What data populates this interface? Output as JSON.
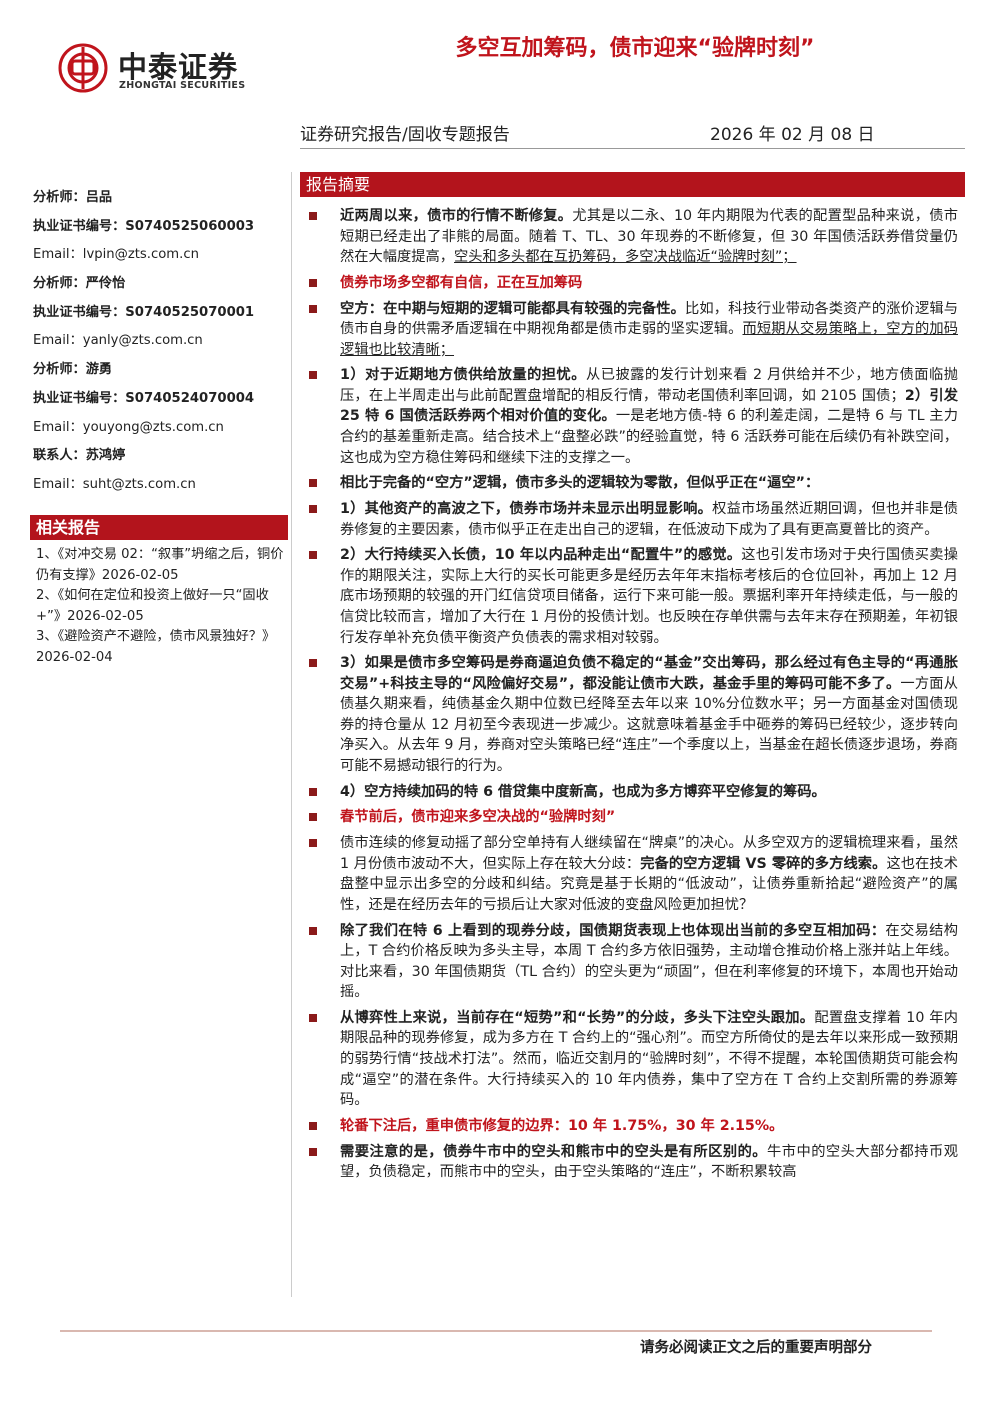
{
  "header": {
    "logo_cn": "中泰证券",
    "logo_en": "ZHONGTAI SECURITIES",
    "title": "多空互加筹码，债市迎来“验牌时刻”",
    "report_type": "证券研究报告/固收专题报告",
    "date": "2026 年 02 月 08 日"
  },
  "contacts": [
    {
      "text": "分析师：吕品",
      "style": "bold"
    },
    {
      "text": "执业证书编号：S0740525060003",
      "style": "bold"
    },
    {
      "text": "Email：lvpin@zts.com.cn",
      "style": "normal"
    },
    {
      "text": "分析师：严伶怡",
      "style": "bold"
    },
    {
      "text": "执业证书编号：S0740525070001",
      "style": "bold"
    },
    {
      "text": "Email：yanly@zts.com.cn",
      "style": "normal"
    },
    {
      "text": "分析师：游勇",
      "style": "bold"
    },
    {
      "text": "执业证书编号：S0740524070004",
      "style": "bold"
    },
    {
      "text": "Email：youyong@zts.com.cn",
      "style": "normal"
    },
    {
      "text": "联系人：苏鸿婷",
      "style": "bold"
    },
    {
      "text": "Email：suht@zts.com.cn",
      "style": "normal"
    }
  ],
  "related": {
    "title": "相关报告",
    "items": [
      "1、《对冲交易 02：“叙事”坍缩之后，铜价仍有支撑》2026-02-05",
      "2、《如何在定位和投资上做好一只“固收+”》2026-02-05",
      "3、《避险资产不避险，债市风景独好？》2026-02-04"
    ]
  },
  "summary": {
    "title": "报告摘要",
    "paragraphs": [
      [
        {
          "text": "近两周以来，债市的行情不断修复。",
          "style": "bold"
        },
        {
          "text": "尤其是以二永、10 年内期限为代表的配置型品种来说，债市短期已经走出了非熊的局面。随着 T、TL、30 年现券的不断修复，但 30 年国债活跃券借贷量仍然在大幅度提高，",
          "style": "normal"
        },
        {
          "text": "空头和多头都在互扔筹码，多空决战临近“验牌时刻”；",
          "style": "underline"
        }
      ],
      [
        {
          "text": "债券市场多空都有自信，正在互加筹码",
          "style": "red-bold"
        }
      ],
      [
        {
          "text": "空方：在中期与短期的逻辑可能都具有较强的完备性。",
          "style": "bold"
        },
        {
          "text": "比如，科技行业带动各类资产的涨价逻辑与债市自身的供需矛盾逻辑在中期视角都是债市走弱的坚实逻辑。",
          "style": "normal"
        },
        {
          "text": "而短期从交易策略上，空方的加码逻辑也比较清晰；",
          "style": "underline"
        }
      ],
      [
        {
          "text": "1）对于近期地方债供给放量的担忧。",
          "style": "bold"
        },
        {
          "text": "从已披露的发行计划来看 2 月供给并不少，地方债面临抛压，在上半周走出与此前配置盘增配的相反行情，带动老国债利率回调，如 2105 国债；",
          "style": "normal"
        },
        {
          "text": "2）引发 25 特 6 国债活跃券两个相对价值的变化。",
          "style": "bold"
        },
        {
          "text": "一是老地方债-特 6 的利差走阔，二是特 6 与 TL 主力合约的基差重新走高。结合技术上“盘整必跌”的经验直觉，特 6 活跃券可能在后续仍有补跌空间，这也成为空方稳住筹码和继续下注的支撑之一。",
          "style": "normal"
        }
      ],
      [
        {
          "text": "相比于完备的“空方”逻辑，债市多头的逻辑较为零散，但似乎正在“逼空”：",
          "style": "bold"
        }
      ],
      [
        {
          "text": "1）其他资产的高波之下，债券市场并未显示出明显影响。",
          "style": "bold"
        },
        {
          "text": "权益市场虽然近期回调，但也并非是债券修复的主要因素，债市似乎正在走出自己的逻辑，在低波动下成为了具有更高夏普比的资产。",
          "style": "normal"
        }
      ],
      [
        {
          "text": "2）大行持续买入长债，10 年以内品种走出“配置牛”的感觉。",
          "style": "bold"
        },
        {
          "text": "这也引发市场对于央行国债买卖操作的期限关注，实际上大行的买长可能更多是经历去年年末指标考核后的仓位回补，再加上 12 月底市场预期的较强的开门红信贷项目储备，运行下来可能一般。票据利率开年持续走低，与一般的信贷比较而言，增加了大行在 1 月份的投债计划。也反映在存单供需与去年末存在预期差，年初银行发存单补充负债平衡资产负债表的需求相对较弱。",
          "style": "normal"
        }
      ],
      [
        {
          "text": "3）如果是债市多空筹码是券商逼迫负债不稳定的“基金”交出筹码，那么经过有色主导的“再通胀交易”+科技主导的“风险偏好交易”，都没能让债市大跌，基金手里的筹码可能不多了。",
          "style": "bold"
        },
        {
          "text": "一方面从债基久期来看，纯债基金久期中位数已经降至去年以来 10%分位数水平；另一方面基金对国债现券的持仓量从 12 月初至今表现进一步减少。这就意味着基金手中砸券的筹码已经较少，逐步转向净买入。从去年 9 月，券商对空头策略已经“连庄”一个季度以上，当基金在超长债逐步退场，券商可能不易撼动银行的行为。",
          "style": "normal"
        }
      ],
      [
        {
          "text": "4）空方持续加码的特 6 借贷集中度新高，也成为多方博弈平空修复的筹码。",
          "style": "bold"
        }
      ],
      [
        {
          "text": "春节前后，债市迎来多空决战的“验牌时刻”",
          "style": "red-bold"
        }
      ],
      [
        {
          "text": "债市连续的修复动摇了部分空单持有人继续留在“牌桌”的决心。从多空双方的逻辑梳理来看，虽然 1 月份债市波动不大，但实际上存在较大分歧：",
          "style": "normal"
        },
        {
          "text": "完备的空方逻辑 VS 零碎的多方线索。",
          "style": "bold"
        },
        {
          "text": "这也在技术盘整中显示出多空的分歧和纠结。究竟是基于长期的“低波动”，让债券重新拾起“避险资产”的属性，还是在经历去年的亏损后让大家对低波的变盘风险更加担忧？",
          "style": "normal"
        }
      ],
      [
        {
          "text": "除了我们在特 6 上看到的现券分歧，国债期货表现上也体现出当前的多空互相加码：",
          "style": "bold"
        },
        {
          "text": "在交易结构上，T 合约价格反映为多头主导，本周 T 合约多方依旧强势，主动增仓推动价格上涨并站上年线。对比来看，30 年国债期货（TL 合约）的空头更为“顽固”，但在利率修复的环境下，本周也开始动摇。",
          "style": "normal"
        }
      ],
      [
        {
          "text": "从博弈性上来说，当前存在“短势”和“长势”的分歧，多头下注空头跟加。",
          "style": "bold"
        },
        {
          "text": "配置盘支撑着 10 年内期限品种的现券修复，成为多方在 T 合约上的“强心剂”。而空方所倚仗的是去年以来形成一致预期的弱势行情“技战术打法”。然而，临近交割月的“验牌时刻”，不得不提醒，本轮国债期货可能会构成“逼空”的潜在条件。大行持续买入的 10 年内债券，集中了空方在 T 合约上交割所需的券源筹码。",
          "style": "normal"
        }
      ],
      [
        {
          "text": "轮番下注后，重申债市修复的边界：10 年 1.75%，30 年 2.15%。",
          "style": "red-bold"
        }
      ],
      [
        {
          "text": "需要注意的是，债券牛市中的空头和熊市中的空头是有所区别的。",
          "style": "bold"
        },
        {
          "text": "牛市中的空头大部分都持币观望，负债稳定，而熊市中的空头，由于空头策略的“连庄”，不断积累较高",
          "style": "normal"
        }
      ]
    ]
  },
  "footer": "请务必阅读正文之后的重要声明部分"
}
